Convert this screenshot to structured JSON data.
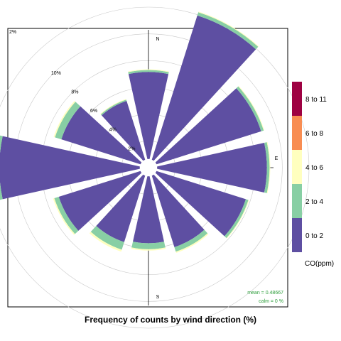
{
  "chart_data": {
    "type": "wind-rose",
    "title": "Frequency of counts by wind direction (%)",
    "compass": {
      "north": "N",
      "east": "E",
      "south": "S"
    },
    "radial_ticks": [
      "2%",
      "4%",
      "6%",
      "8%",
      "10%"
    ],
    "radial_corner_label": "2%",
    "radial_max": 12,
    "calm_radius_pct": 0.65,
    "directions_deg": [
      0,
      30,
      60,
      90,
      120,
      150,
      180,
      210,
      240,
      270,
      300,
      330
    ],
    "series": [
      {
        "name": "0 to 2",
        "color": "#5E4FA2",
        "values": [
          6.5,
          11.3,
          8.2,
          8.2,
          7.0,
          5.6,
          5.0,
          5.2,
          6.4,
          10.5,
          6.2,
          4.6
        ]
      },
      {
        "name": "2 to 4",
        "color": "#88CFA4",
        "values": [
          0.15,
          0.25,
          0.2,
          0.2,
          0.2,
          0.35,
          0.45,
          0.6,
          0.35,
          0.4,
          0.5,
          0.1
        ]
      },
      {
        "name": "4 to 6",
        "color": "#FFFFBF",
        "values": [
          0.05,
          0.05,
          0.05,
          0.05,
          0.05,
          0.1,
          0.1,
          0.15,
          0.1,
          0.15,
          0.1,
          0.05
        ]
      },
      {
        "name": "6 to 8",
        "color": "#F88D52",
        "values": [
          0,
          0,
          0,
          0,
          0,
          0,
          0,
          0,
          0,
          0,
          0,
          0
        ]
      },
      {
        "name": "8 to 11",
        "color": "#9E0142",
        "values": [
          0,
          0,
          0,
          0,
          0,
          0,
          0,
          0,
          0,
          0,
          0,
          0
        ]
      }
    ],
    "legend": {
      "title": "CO(ppm)",
      "placement": "right",
      "items_top_to_bottom": [
        "8 to 11",
        "6 to 8",
        "4 to 6",
        "2 to 4",
        "0 to 2"
      ]
    },
    "stats": {
      "mean": "mean = 0.48667",
      "calm": "calm = 0 %",
      "color": "#2E9E3C"
    }
  }
}
